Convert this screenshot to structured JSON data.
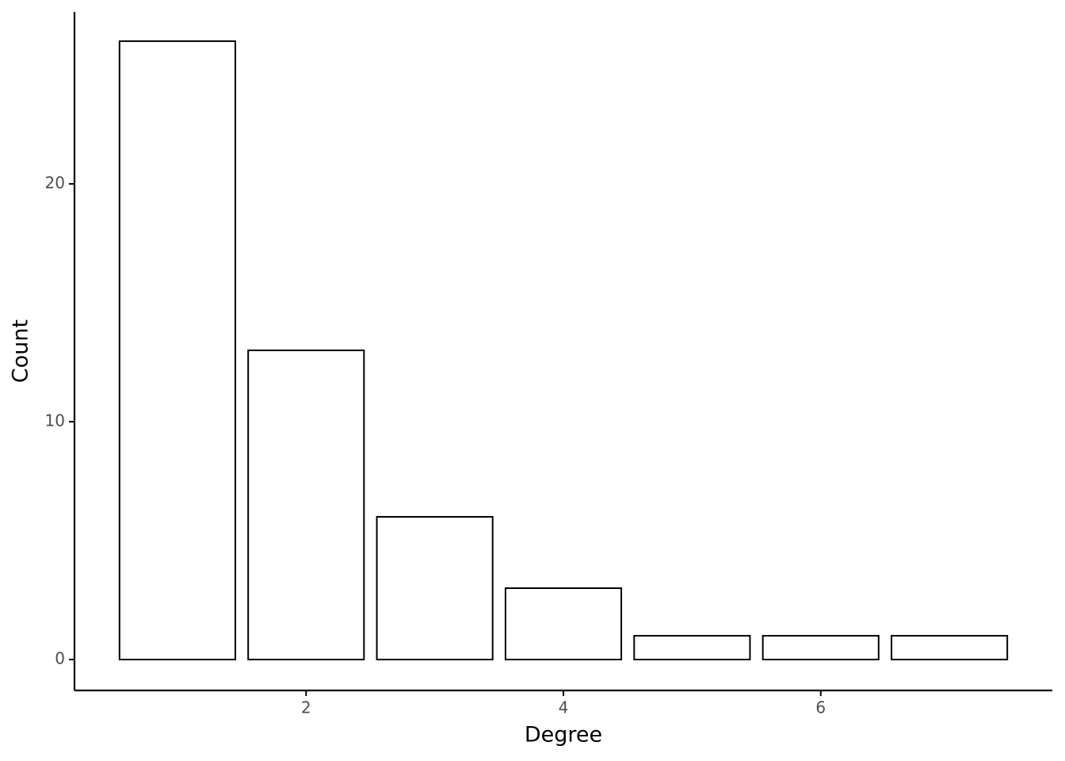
{
  "chart_data": {
    "type": "bar",
    "x_label": "Degree",
    "y_label": "Count",
    "x": [
      1,
      2,
      3,
      4,
      5,
      6,
      7
    ],
    "values": [
      26,
      13,
      6,
      3,
      1,
      1,
      1
    ],
    "color": "#ffffff",
    "edge_color": "#000000",
    "xlim": [
      0.2,
      7.8
    ],
    "xticks": [
      2,
      4,
      6
    ],
    "ylim": [
      -1.3,
      27.23
    ],
    "yticks": [
      0,
      10,
      20
    ],
    "grid": false
  }
}
